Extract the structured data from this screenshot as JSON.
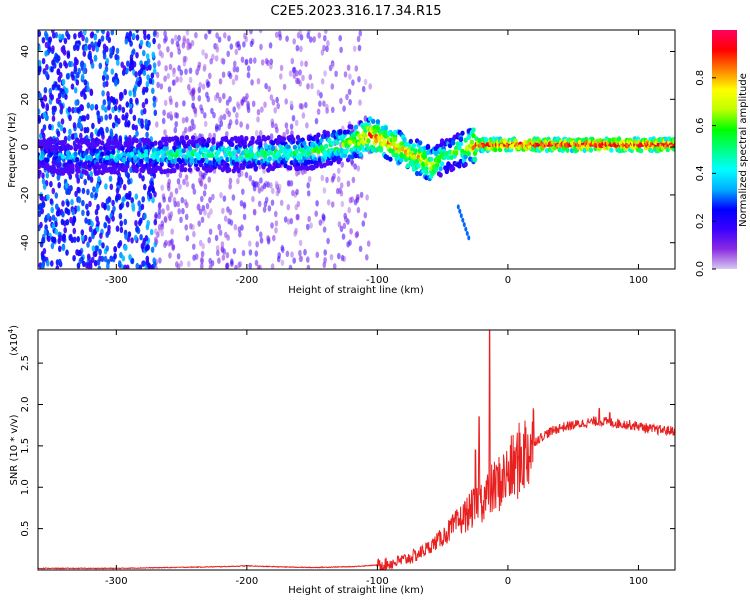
{
  "title": "C2E5.2023.316.17.34.R15",
  "chart_data": [
    {
      "type": "heatmap",
      "title": "C2E5.2023.316.17.34.R15",
      "xlabel": "Height of straight line (km)",
      "ylabel": "Frequency (Hz)",
      "xlim": [
        -360,
        128
      ],
      "ylim": [
        -51,
        49
      ],
      "xticks": [
        -300,
        -200,
        -100,
        0,
        100
      ],
      "yticks": [
        -40,
        -20,
        0,
        20,
        40
      ],
      "colorbar": {
        "label": "Normalized spectral amplitude",
        "range": [
          0.0,
          1.0
        ],
        "ticks": [
          0.0,
          0.2,
          0.4,
          0.6,
          0.8
        ],
        "colormap": [
          "#d8c8f0",
          "#8a2be2",
          "#3a00ff",
          "#0000ff",
          "#00b0ff",
          "#00ffff",
          "#00ff80",
          "#00ff00",
          "#c0ff00",
          "#ffff00",
          "#ff8000",
          "#ff0000",
          "#ff0060"
        ]
      },
      "ridge": {
        "x": [
          -360,
          -300,
          -250,
          -200,
          -150,
          -120,
          -105,
          -95,
          -85,
          -75,
          -65,
          -58,
          -50,
          -40,
          -30,
          -25,
          128
        ],
        "y": [
          -4,
          -4,
          -3,
          -3,
          -2,
          2,
          5,
          3,
          0,
          -3,
          -5,
          -8,
          -4,
          -2,
          0,
          1,
          1
        ],
        "strength": [
          0.35,
          0.4,
          0.5,
          0.5,
          0.55,
          0.65,
          0.85,
          0.8,
          0.75,
          0.75,
          0.75,
          0.7,
          0.6,
          0.6,
          0.7,
          0.9,
          0.95
        ]
      },
      "side_streak": {
        "x": [
          -38,
          -30
        ],
        "y": [
          -25,
          -38
        ]
      }
    },
    {
      "type": "line",
      "xlabel": "Height of straight line (km)",
      "ylabel": "SNR (10 * v/v)",
      "multiplier": "(x10",
      "multiplier_exp": "4",
      "multiplier_close": ")",
      "xlim": [
        -360,
        128
      ],
      "ylim": [
        0,
        2.9
      ],
      "xticks": [
        -300,
        -200,
        -100,
        0,
        100
      ],
      "yticks": [
        0.5,
        1.0,
        1.5,
        2.0,
        2.5
      ],
      "ytick_labels": [
        "0.5",
        "1.0",
        "1.5",
        "2.0",
        "2.5"
      ],
      "color": "#e82020",
      "envelope": {
        "x": [
          -360,
          -300,
          -260,
          -220,
          -200,
          -180,
          -150,
          -120,
          -100,
          -90,
          -80,
          -70,
          -60,
          -50,
          -40,
          -30,
          -20,
          -10,
          0,
          10,
          20,
          30,
          40,
          50,
          60,
          70,
          80,
          90,
          100,
          110,
          128
        ],
        "y": [
          0.02,
          0.02,
          0.03,
          0.04,
          0.05,
          0.04,
          0.03,
          0.04,
          0.06,
          0.08,
          0.12,
          0.18,
          0.28,
          0.4,
          0.55,
          0.7,
          0.85,
          1.0,
          1.15,
          1.35,
          1.55,
          1.65,
          1.72,
          1.75,
          1.78,
          1.8,
          1.78,
          1.76,
          1.74,
          1.7,
          1.68
        ]
      },
      "spikes": [
        {
          "x": -25,
          "y": 1.45
        },
        {
          "x": -22,
          "y": 1.85
        },
        {
          "x": -14,
          "y": 2.9
        },
        {
          "x": 70,
          "y": 1.95
        },
        {
          "x": 78,
          "y": 1.9
        }
      ]
    }
  ]
}
